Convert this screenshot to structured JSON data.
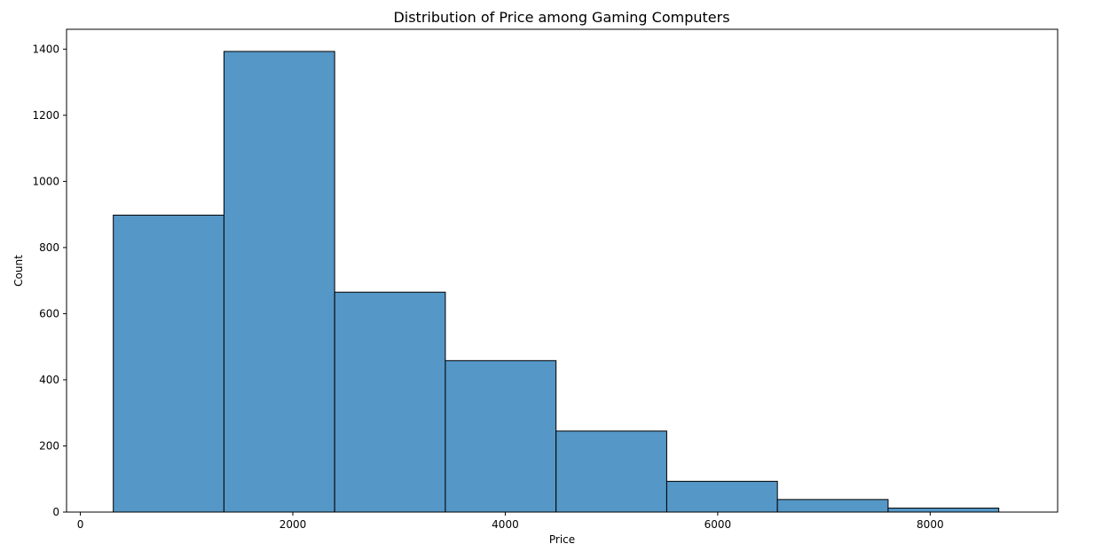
{
  "chart_data": {
    "type": "bar",
    "title": "Distribution of Price among Gaming Computers",
    "xlabel": "Price",
    "ylabel": "Count",
    "xlim": [
      -130,
      9200
    ],
    "ylim": [
      0,
      1460
    ],
    "x_ticks": [
      0,
      2000,
      4000,
      6000,
      8000
    ],
    "y_ticks": [
      0,
      200,
      400,
      600,
      800,
      1000,
      1200,
      1400
    ],
    "bins": [
      {
        "start": 310,
        "end": 1352,
        "count": 898
      },
      {
        "start": 1352,
        "end": 2394,
        "count": 1393
      },
      {
        "start": 2394,
        "end": 3436,
        "count": 665
      },
      {
        "start": 3436,
        "end": 4478,
        "count": 458
      },
      {
        "start": 4478,
        "end": 5520,
        "count": 245
      },
      {
        "start": 5520,
        "end": 6562,
        "count": 93
      },
      {
        "start": 6562,
        "end": 7604,
        "count": 38
      },
      {
        "start": 7604,
        "end": 8646,
        "count": 12
      }
    ],
    "bar_color": "#5597c6",
    "grid": false,
    "legend": "none"
  }
}
